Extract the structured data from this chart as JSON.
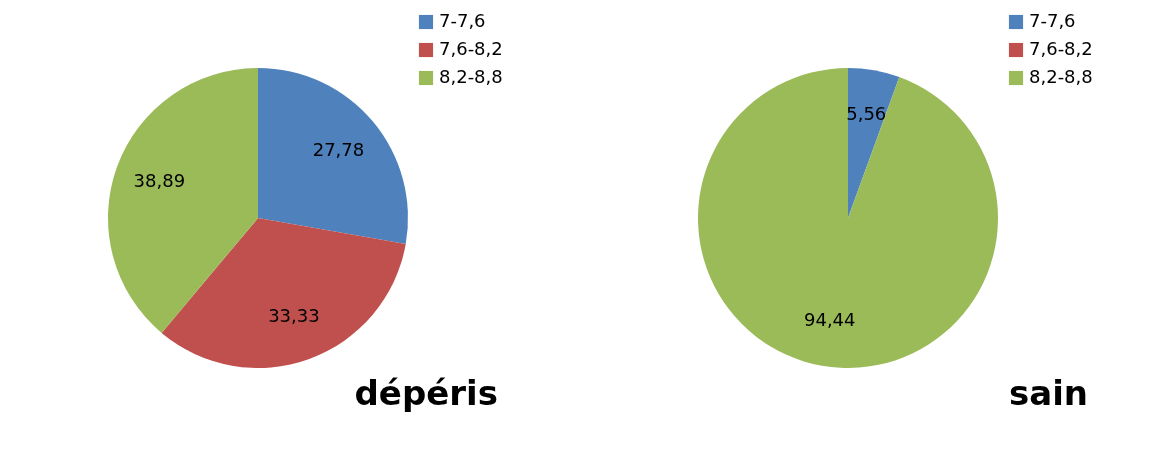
{
  "chart_data": [
    {
      "type": "pie",
      "title": "dépéris",
      "categories": [
        "7-7,6",
        "7,6-8,2",
        "8,2-8,8"
      ],
      "values": [
        27.78,
        33.33,
        38.89
      ],
      "colors": [
        "#4f81bd",
        "#c0504d",
        "#9bbb59"
      ],
      "value_labels": [
        "27,78",
        "33,33",
        "38,89"
      ],
      "legend": "top right"
    },
    {
      "type": "pie",
      "title": "sain",
      "categories": [
        "7-7,6",
        "7,6-8,2",
        "8,2-8,8"
      ],
      "values": [
        5.56,
        0,
        94.44
      ],
      "colors": [
        "#4f81bd",
        "#c0504d",
        "#9bbb59"
      ],
      "value_labels": [
        "5,56",
        null,
        "94,44"
      ],
      "legend": "top right"
    }
  ]
}
